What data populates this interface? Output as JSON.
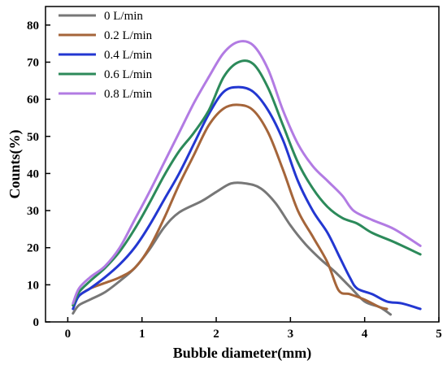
{
  "chart_data": {
    "type": "line",
    "title": "",
    "xlabel": "Bubble diameter(mm)",
    "ylabel": "Counts(%)",
    "xlim": [
      -0.3,
      5
    ],
    "ylim": [
      0,
      85
    ],
    "xticks": [
      "0",
      "1",
      "2",
      "3",
      "4",
      "5"
    ],
    "yticks": [
      "0",
      "10",
      "20",
      "30",
      "40",
      "50",
      "60",
      "70",
      "80"
    ],
    "grid": false,
    "legend_position": "top-left",
    "series": [
      {
        "name": "0 L/min",
        "color": "#777777",
        "points": [
          [
            0.07,
            2.3
          ],
          [
            0.15,
            4.5
          ],
          [
            0.3,
            6.0
          ],
          [
            0.5,
            8.0
          ],
          [
            0.7,
            11.0
          ],
          [
            0.9,
            14.5
          ],
          [
            1.1,
            19.5
          ],
          [
            1.3,
            25.5
          ],
          [
            1.5,
            29.5
          ],
          [
            1.8,
            32.5
          ],
          [
            2.0,
            35.0
          ],
          [
            2.2,
            37.3
          ],
          [
            2.4,
            37.3
          ],
          [
            2.6,
            36.0
          ],
          [
            2.8,
            32.0
          ],
          [
            3.0,
            26.0
          ],
          [
            3.2,
            21.0
          ],
          [
            3.4,
            17.0
          ],
          [
            3.6,
            13.5
          ],
          [
            3.8,
            9.5
          ],
          [
            4.0,
            5.5
          ],
          [
            4.2,
            4.0
          ],
          [
            4.35,
            2.0
          ]
        ]
      },
      {
        "name": "0.2 L/min",
        "color": "#a5653a",
        "points": [
          [
            0.07,
            4.5
          ],
          [
            0.15,
            7.0
          ],
          [
            0.3,
            9.0
          ],
          [
            0.5,
            10.5
          ],
          [
            0.7,
            12.0
          ],
          [
            0.9,
            14.5
          ],
          [
            1.1,
            20.0
          ],
          [
            1.3,
            28.0
          ],
          [
            1.5,
            37.0
          ],
          [
            1.7,
            45.0
          ],
          [
            1.9,
            53.0
          ],
          [
            2.1,
            57.5
          ],
          [
            2.3,
            58.5
          ],
          [
            2.5,
            57.0
          ],
          [
            2.7,
            51.0
          ],
          [
            2.9,
            41.0
          ],
          [
            3.1,
            30.0
          ],
          [
            3.3,
            23.0
          ],
          [
            3.5,
            16.0
          ],
          [
            3.65,
            8.5
          ],
          [
            3.8,
            7.5
          ],
          [
            4.0,
            6.0
          ],
          [
            4.2,
            4.0
          ],
          [
            4.3,
            3.5
          ]
        ]
      },
      {
        "name": "0.4 L/min",
        "color": "#2337d1",
        "points": [
          [
            0.07,
            3.5
          ],
          [
            0.15,
            7.0
          ],
          [
            0.3,
            9.0
          ],
          [
            0.5,
            12.0
          ],
          [
            0.7,
            15.5
          ],
          [
            0.9,
            20.0
          ],
          [
            1.1,
            26.0
          ],
          [
            1.3,
            33.0
          ],
          [
            1.5,
            40.0
          ],
          [
            1.7,
            48.0
          ],
          [
            1.9,
            56.0
          ],
          [
            2.1,
            62.0
          ],
          [
            2.3,
            63.3
          ],
          [
            2.5,
            62.0
          ],
          [
            2.7,
            57.0
          ],
          [
            2.9,
            49.0
          ],
          [
            3.1,
            38.0
          ],
          [
            3.3,
            30.0
          ],
          [
            3.5,
            24.0
          ],
          [
            3.65,
            18.0
          ],
          [
            3.8,
            12.0
          ],
          [
            3.9,
            9.0
          ],
          [
            4.1,
            7.5
          ],
          [
            4.3,
            5.5
          ],
          [
            4.5,
            5.0
          ],
          [
            4.75,
            3.5
          ]
        ]
      },
      {
        "name": "0.6 L/min",
        "color": "#2c8a5a",
        "points": [
          [
            0.07,
            4.5
          ],
          [
            0.15,
            8.0
          ],
          [
            0.3,
            11.0
          ],
          [
            0.5,
            14.5
          ],
          [
            0.7,
            19.0
          ],
          [
            0.9,
            25.0
          ],
          [
            1.1,
            32.0
          ],
          [
            1.3,
            39.5
          ],
          [
            1.5,
            46.0
          ],
          [
            1.7,
            51.0
          ],
          [
            1.9,
            57.0
          ],
          [
            2.1,
            66.0
          ],
          [
            2.3,
            70.0
          ],
          [
            2.5,
            69.5
          ],
          [
            2.7,
            63.0
          ],
          [
            2.9,
            53.0
          ],
          [
            3.1,
            43.0
          ],
          [
            3.3,
            36.0
          ],
          [
            3.5,
            31.0
          ],
          [
            3.7,
            28.0
          ],
          [
            3.9,
            26.5
          ],
          [
            4.1,
            24.0
          ],
          [
            4.4,
            21.5
          ],
          [
            4.75,
            18.2
          ]
        ]
      },
      {
        "name": "0.8 L/min",
        "color": "#b27be3",
        "points": [
          [
            0.07,
            5.0
          ],
          [
            0.15,
            9.0
          ],
          [
            0.3,
            12.0
          ],
          [
            0.5,
            15.0
          ],
          [
            0.7,
            20.0
          ],
          [
            0.9,
            27.5
          ],
          [
            1.1,
            35.0
          ],
          [
            1.3,
            43.0
          ],
          [
            1.5,
            51.0
          ],
          [
            1.7,
            59.0
          ],
          [
            1.9,
            66.0
          ],
          [
            2.1,
            72.5
          ],
          [
            2.3,
            75.5
          ],
          [
            2.5,
            74.5
          ],
          [
            2.7,
            68.0
          ],
          [
            2.9,
            57.0
          ],
          [
            3.1,
            48.0
          ],
          [
            3.3,
            42.0
          ],
          [
            3.5,
            38.0
          ],
          [
            3.7,
            34.0
          ],
          [
            3.85,
            30.0
          ],
          [
            4.1,
            27.5
          ],
          [
            4.4,
            25.0
          ],
          [
            4.75,
            20.5
          ]
        ]
      }
    ]
  }
}
